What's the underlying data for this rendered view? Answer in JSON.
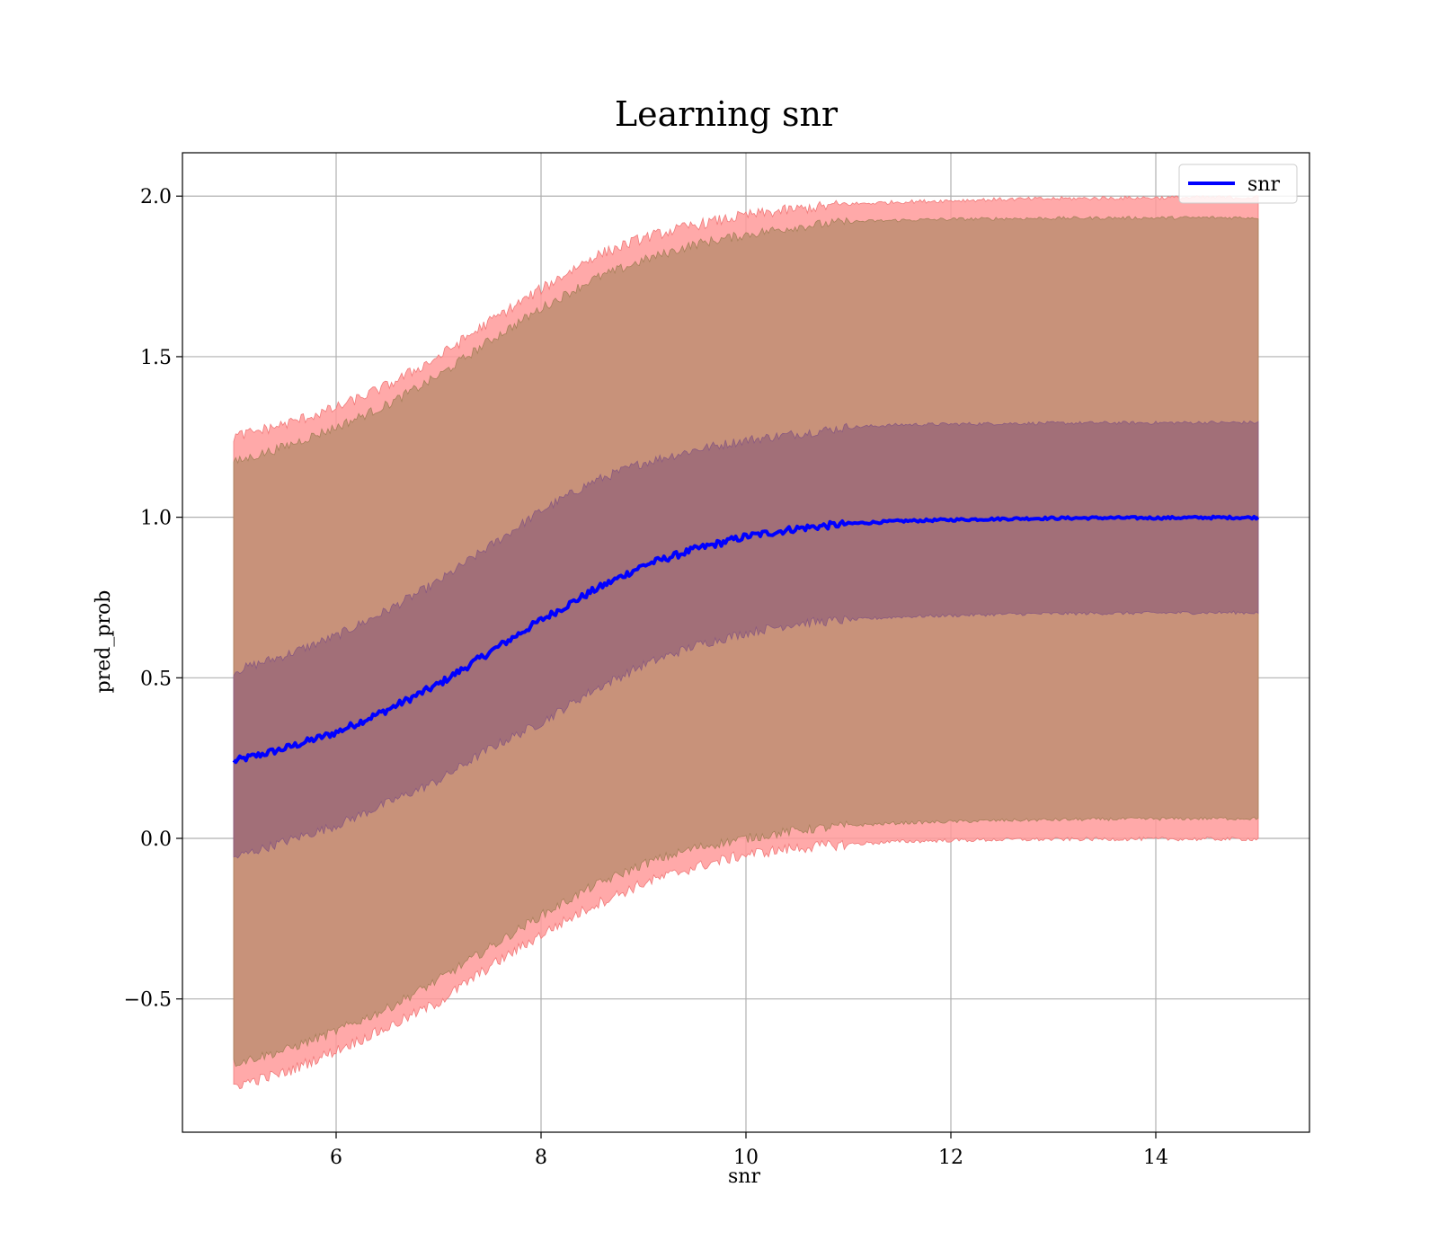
{
  "chart_data": {
    "type": "area",
    "title": "Learning snr",
    "xlabel": "snr",
    "ylabel": "pred_prob",
    "xlim": [
      4.5,
      15.5
    ],
    "ylim": [
      -0.915,
      2.135
    ],
    "xticks": [
      6,
      8,
      10,
      12,
      14
    ],
    "xtick_labels": [
      "6",
      "8",
      "10",
      "12",
      "14"
    ],
    "yticks": [
      -0.5,
      0.0,
      0.5,
      1.0,
      1.5,
      2.0
    ],
    "ytick_labels": [
      "−0.5",
      "0.0",
      "0.5",
      "1.0",
      "1.5",
      "2.0"
    ],
    "grid": true,
    "legend": {
      "entries": [
        "snr"
      ],
      "placement": "top-right"
    },
    "x": [
      5.0,
      5.5,
      6.0,
      6.5,
      7.0,
      7.5,
      8.0,
      8.5,
      9.0,
      9.5,
      10.0,
      10.5,
      11.0,
      11.5,
      12.0,
      12.5,
      13.0,
      13.5,
      14.0,
      14.5,
      15.0
    ],
    "series": [
      {
        "name": "snr",
        "values": [
          0.24,
          0.28,
          0.33,
          0.4,
          0.48,
          0.58,
          0.68,
          0.77,
          0.85,
          0.9,
          0.94,
          0.965,
          0.98,
          0.988,
          0.992,
          0.995,
          0.997,
          0.998,
          0.998,
          0.999,
          0.999
        ]
      },
      {
        "values": [
          0.52,
          0.57,
          0.63,
          0.71,
          0.8,
          0.91,
          1.02,
          1.11,
          1.17,
          1.21,
          1.24,
          1.26,
          1.28,
          1.288,
          1.29,
          1.292,
          1.293,
          1.294,
          1.294,
          1.295,
          1.295
        ]
      },
      {
        "values": [
          -0.06,
          -0.01,
          0.04,
          0.11,
          0.18,
          0.28,
          0.36,
          0.46,
          0.54,
          0.6,
          0.64,
          0.67,
          0.68,
          0.69,
          0.694,
          0.698,
          0.7,
          0.701,
          0.702,
          0.703,
          0.703
        ]
      },
      {
        "values": [
          1.17,
          1.22,
          1.28,
          1.35,
          1.44,
          1.55,
          1.65,
          1.74,
          1.8,
          1.85,
          1.88,
          1.905,
          1.92,
          1.925,
          1.928,
          1.93,
          1.931,
          1.932,
          1.932,
          1.933,
          1.933
        ]
      },
      {
        "values": [
          -0.7,
          -0.66,
          -0.6,
          -0.53,
          -0.44,
          -0.34,
          -0.24,
          -0.15,
          -0.08,
          -0.03,
          0.0,
          0.025,
          0.04,
          0.048,
          0.052,
          0.056,
          0.058,
          0.06,
          0.061,
          0.062,
          0.062
        ]
      },
      {
        "values": [
          1.25,
          1.29,
          1.34,
          1.41,
          1.5,
          1.61,
          1.71,
          1.81,
          1.87,
          1.91,
          1.94,
          1.96,
          1.975,
          1.982,
          1.986,
          1.99,
          1.992,
          1.994,
          1.995,
          1.996,
          1.996
        ]
      },
      {
        "values": [
          -0.77,
          -0.73,
          -0.66,
          -0.59,
          -0.51,
          -0.4,
          -0.3,
          -0.21,
          -0.14,
          -0.09,
          -0.05,
          -0.03,
          -0.018,
          -0.01,
          -0.006,
          -0.004,
          -0.003,
          -0.002,
          -0.002,
          -0.002,
          -0.002
        ]
      }
    ],
    "colors": {
      "line": "#0000ff",
      "outer_band": "#ff9a9a",
      "middle_band": "#c8927a",
      "inner_band": "#a26f78",
      "grid": "#b0b0b0"
    }
  }
}
